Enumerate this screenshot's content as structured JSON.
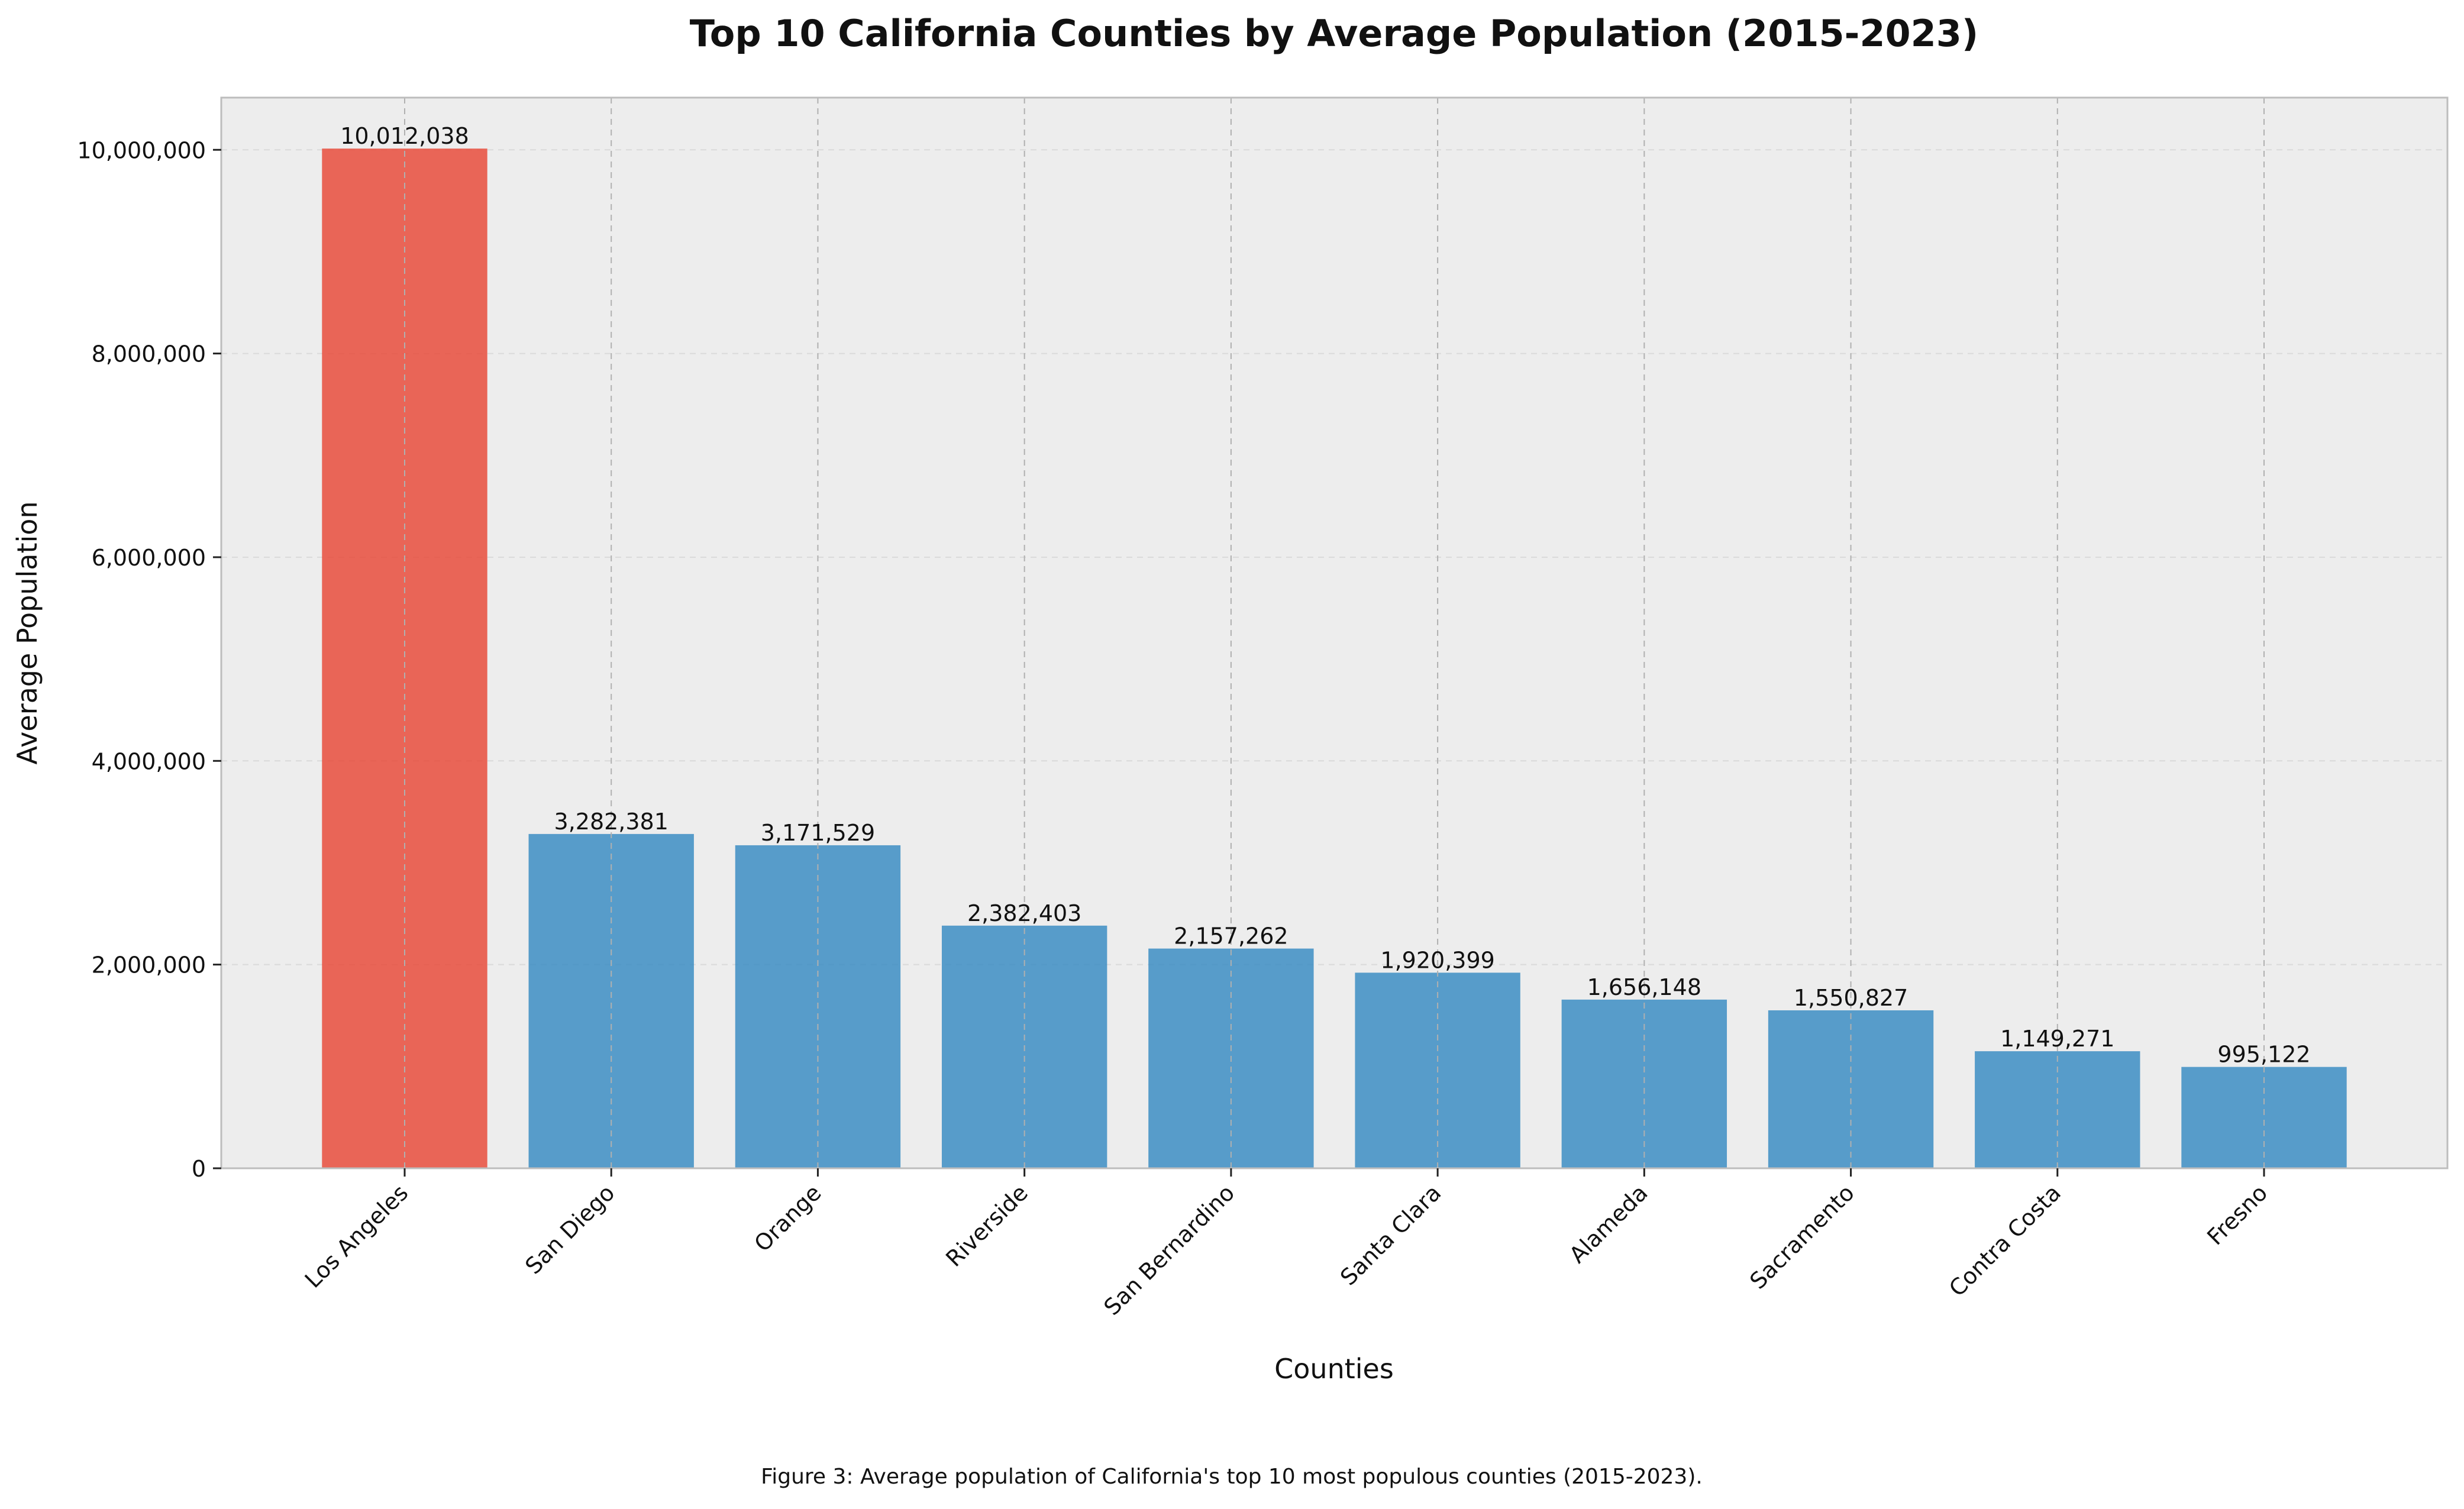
{
  "chart_data": {
    "type": "bar",
    "title": "Top 10 California Counties by Average Population (2015-2023)",
    "xlabel": "Counties",
    "ylabel": "Average Population",
    "caption": "Figure 3: Average population of California's top 10 most populous counties (2015-2023).",
    "categories": [
      "Los Angeles",
      "San Diego",
      "Orange",
      "Riverside",
      "San Bernardino",
      "Santa Clara",
      "Alameda",
      "Sacramento",
      "Contra Costa",
      "Fresno"
    ],
    "values": [
      10012038,
      3282381,
      3171529,
      2382403,
      2157262,
      1920399,
      1656148,
      1550827,
      1149271,
      995122
    ],
    "value_labels": [
      "10,012,038",
      "3,282,381",
      "3,171,529",
      "2,382,403",
      "2,157,262",
      "1,920,399",
      "1,656,148",
      "1,550,827",
      "1,149,271",
      "995,122"
    ],
    "ylim": [
      0,
      10512640
    ],
    "yticks": [
      0,
      2000000,
      4000000,
      6000000,
      8000000,
      10000000
    ],
    "ytick_labels": [
      "0",
      "2,000,000",
      "4,000,000",
      "6,000,000",
      "8,000,000",
      "10,000,000"
    ],
    "grid": true,
    "colors": {
      "highlight": "#E74C3C",
      "bar": "#3C8DC3",
      "plot_background": "#EDEDED",
      "frame": "#BDBDBD",
      "grid_vertical": "#B0B0B0",
      "grid_horizontal": "#DADADA"
    }
  }
}
